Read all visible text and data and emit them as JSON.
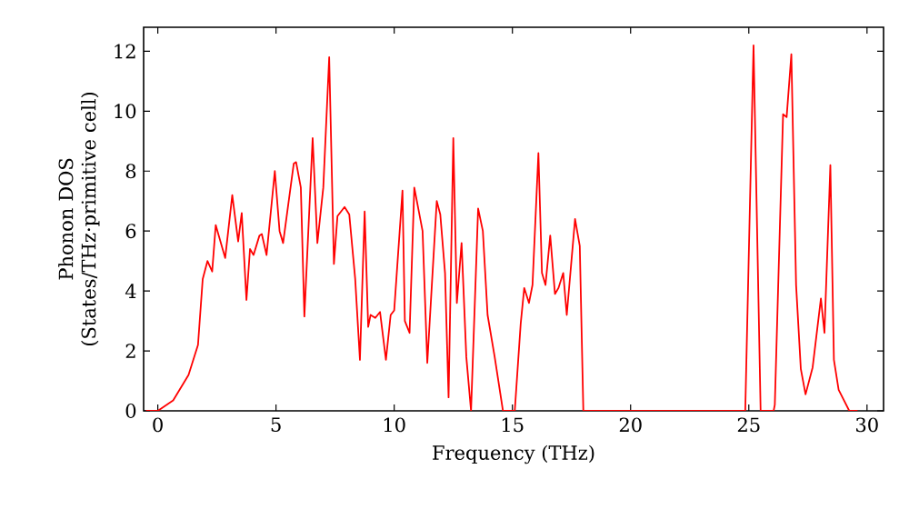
{
  "chart_data": {
    "type": "line",
    "xlabel": "Frequency (THz)",
    "ylabel": "Phonon DOS (States/THz·primitive cell)",
    "xlim": [
      -0.6,
      30.7
    ],
    "ylim": [
      0,
      12.8
    ],
    "xticks": [
      0,
      5,
      10,
      15,
      20,
      25,
      30
    ],
    "yticks": [
      0,
      2,
      4,
      6,
      8,
      10,
      12
    ],
    "marker": "none",
    "line_style": "solid",
    "series": [
      {
        "color": "#ff0000",
        "x": [
          -0.5,
          0,
          0.65,
          1.3,
          1.7,
          1.9,
          2.1,
          2.3,
          2.45,
          2.85,
          3.15,
          3.4,
          3.55,
          3.75,
          3.9,
          4.05,
          4.3,
          4.4,
          4.6,
          4.95,
          5.15,
          5.3,
          5.75,
          5.85,
          6.05,
          6.2,
          6.55,
          6.75,
          7.0,
          7.25,
          7.45,
          7.6,
          7.9,
          8.1,
          8.35,
          8.55,
          8.75,
          8.9,
          9.0,
          9.2,
          9.4,
          9.65,
          9.85,
          10.0,
          10.35,
          10.45,
          10.65,
          10.85,
          11.2,
          11.4,
          11.8,
          11.95,
          12.15,
          12.3,
          12.5,
          12.65,
          12.85,
          13.05,
          13.25,
          13.55,
          13.75,
          13.95,
          14.25,
          14.6,
          15.1,
          15.35,
          15.5,
          15.7,
          15.85,
          16.1,
          16.25,
          16.4,
          16.6,
          16.8,
          16.95,
          17.15,
          17.3,
          17.65,
          17.85,
          18.0,
          24.85,
          25.2,
          25.5,
          26.05,
          26.1,
          26.45,
          26.6,
          26.8,
          27.0,
          27.2,
          27.4,
          27.7,
          28.05,
          28.2,
          28.45,
          28.6,
          28.8,
          29.25,
          29.6
        ],
        "values": [
          0,
          0,
          0.35,
          1.2,
          2.2,
          4.4,
          5.0,
          4.65,
          6.2,
          5.1,
          7.2,
          5.65,
          6.6,
          3.7,
          5.4,
          5.2,
          5.85,
          5.9,
          5.2,
          8.0,
          6.0,
          5.6,
          8.25,
          8.3,
          7.45,
          3.15,
          9.1,
          5.6,
          7.45,
          11.8,
          4.9,
          6.5,
          6.8,
          6.55,
          4.4,
          1.7,
          6.65,
          2.8,
          3.2,
          3.1,
          3.3,
          1.7,
          3.2,
          3.35,
          7.35,
          3.0,
          2.6,
          7.45,
          6.0,
          1.6,
          7.0,
          6.55,
          4.6,
          0.45,
          9.1,
          3.6,
          5.6,
          1.8,
          0,
          6.75,
          6.0,
          3.2,
          1.8,
          0,
          0,
          2.9,
          4.1,
          3.6,
          4.2,
          8.6,
          4.6,
          4.2,
          5.85,
          3.9,
          4.1,
          4.6,
          3.2,
          6.4,
          5.5,
          0,
          0,
          12.2,
          0,
          0,
          0.2,
          9.9,
          9.8,
          11.9,
          4.2,
          1.4,
          0.55,
          1.45,
          3.75,
          2.6,
          8.2,
          1.7,
          0.7,
          0,
          0
        ]
      }
    ]
  }
}
